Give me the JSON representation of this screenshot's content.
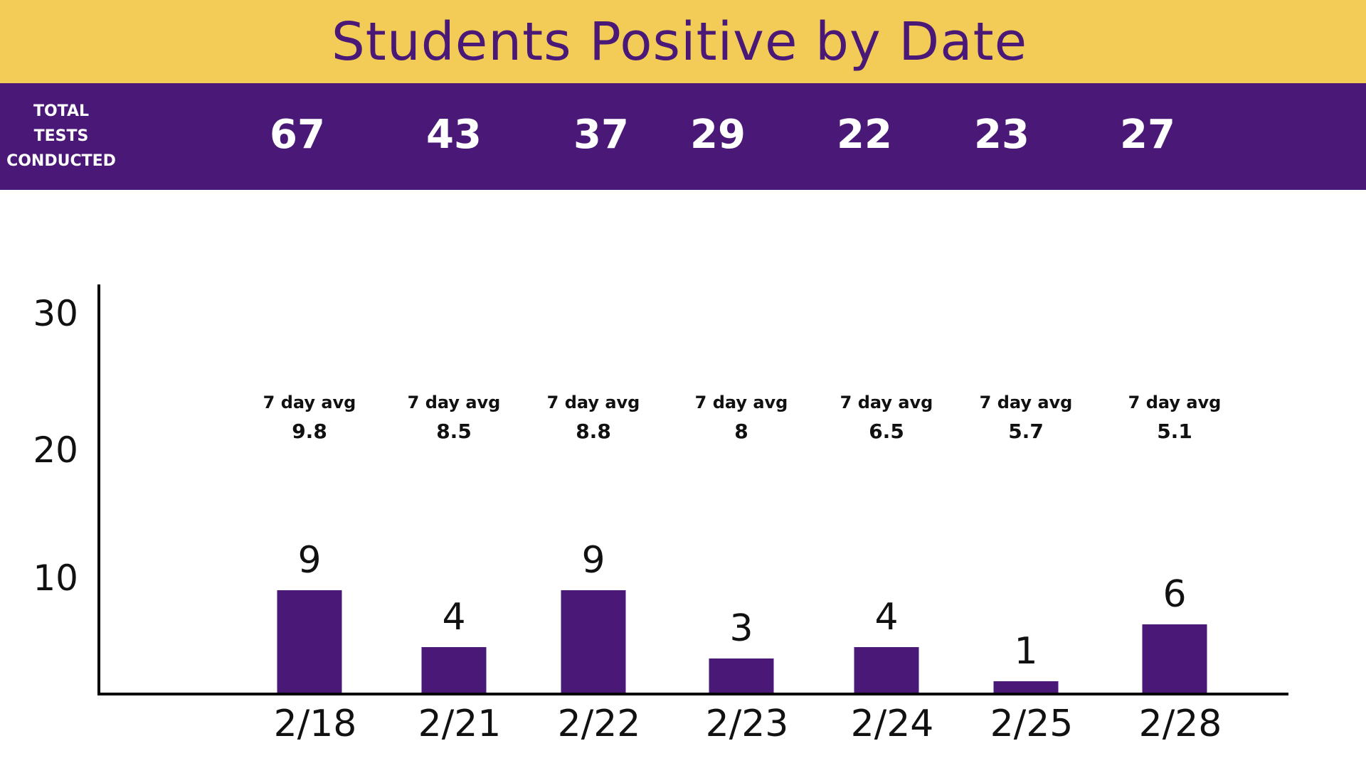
{
  "title": "Students Positive by Date",
  "colors": {
    "title_bg": "#F3CB57",
    "title_text": "#4A1978",
    "band_bg": "#4A1978",
    "bar": "#4A1978"
  },
  "tests": {
    "label_lines": [
      "TOTAL",
      "TESTS",
      "CONDUCTED"
    ],
    "values": [
      "67",
      "43",
      "37",
      "29",
      "22",
      "23",
      "27"
    ]
  },
  "avg_label": "7 day avg",
  "chart_data": {
    "type": "bar",
    "title": "Students Positive by Date",
    "categories": [
      "2/18",
      "2/21",
      "2/22",
      "2/23",
      "2/24",
      "2/25",
      "2/28"
    ],
    "values": [
      9,
      4,
      9,
      3,
      4,
      1,
      6
    ],
    "value_labels": [
      "9",
      "4",
      "9",
      "3",
      "4",
      "1",
      "6"
    ],
    "seven_day_avg": [
      "9.8",
      "8.5",
      "8.8",
      "8",
      "6.5",
      "5.7",
      "5.1"
    ],
    "yticks": [
      "30",
      "20",
      "10"
    ],
    "grid": false
  }
}
